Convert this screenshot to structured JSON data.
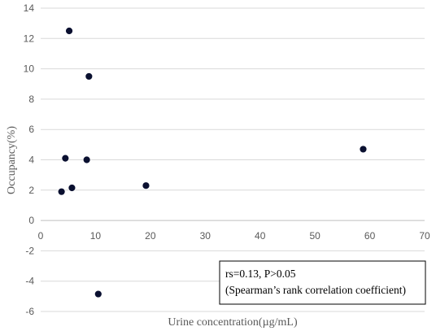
{
  "chart_data": {
    "type": "scatter",
    "title": "",
    "xlabel": "Urine concentration(µg/mL)",
    "ylabel": "Occupancy(%)",
    "xlim": [
      0,
      70
    ],
    "ylim": [
      -6,
      14
    ],
    "x_ticks": [
      0,
      10,
      20,
      30,
      40,
      50,
      60,
      70
    ],
    "y_ticks": [
      -6,
      -4,
      -2,
      0,
      2,
      4,
      6,
      8,
      10,
      12,
      14
    ],
    "grid": "horizontal",
    "legend": "none",
    "marker_color": "#0a1030",
    "series": [
      {
        "x": [
          5.2,
          8.8,
          4.5,
          8.4,
          5.7,
          3.8,
          19.2,
          58.8,
          10.5
        ],
        "y": [
          12.5,
          9.5,
          4.1,
          4.0,
          2.15,
          1.9,
          2.3,
          4.7,
          -4.85
        ]
      }
    ],
    "annotation": {
      "line1": "rs=0.13, P>0.05",
      "line2": "(Spearman’s rank correlation coefficient)"
    }
  }
}
